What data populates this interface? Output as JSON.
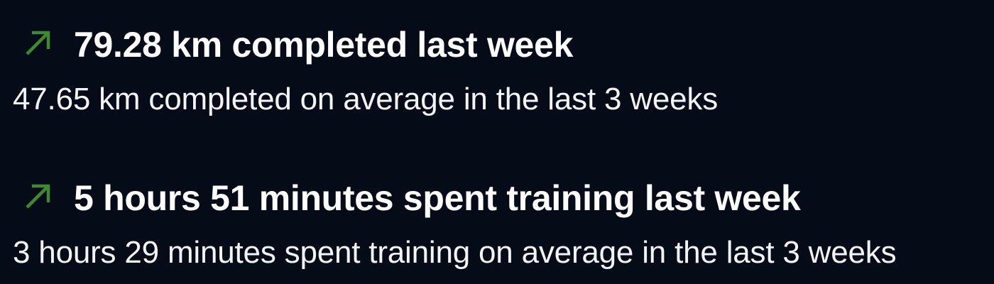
{
  "colors": {
    "background": "#060b18",
    "trend_up": "#3d8b2e",
    "text": "#ffffff"
  },
  "stats": [
    {
      "trend_icon": "arrow-up-right-icon",
      "headline": "79.28 km completed last week",
      "subline": "47.65 km completed on average in the last 3 weeks"
    },
    {
      "trend_icon": "arrow-up-right-icon",
      "headline": "5 hours 51 minutes spent training last week",
      "subline": "3 hours 29 minutes spent training on average in the last 3 weeks"
    }
  ]
}
